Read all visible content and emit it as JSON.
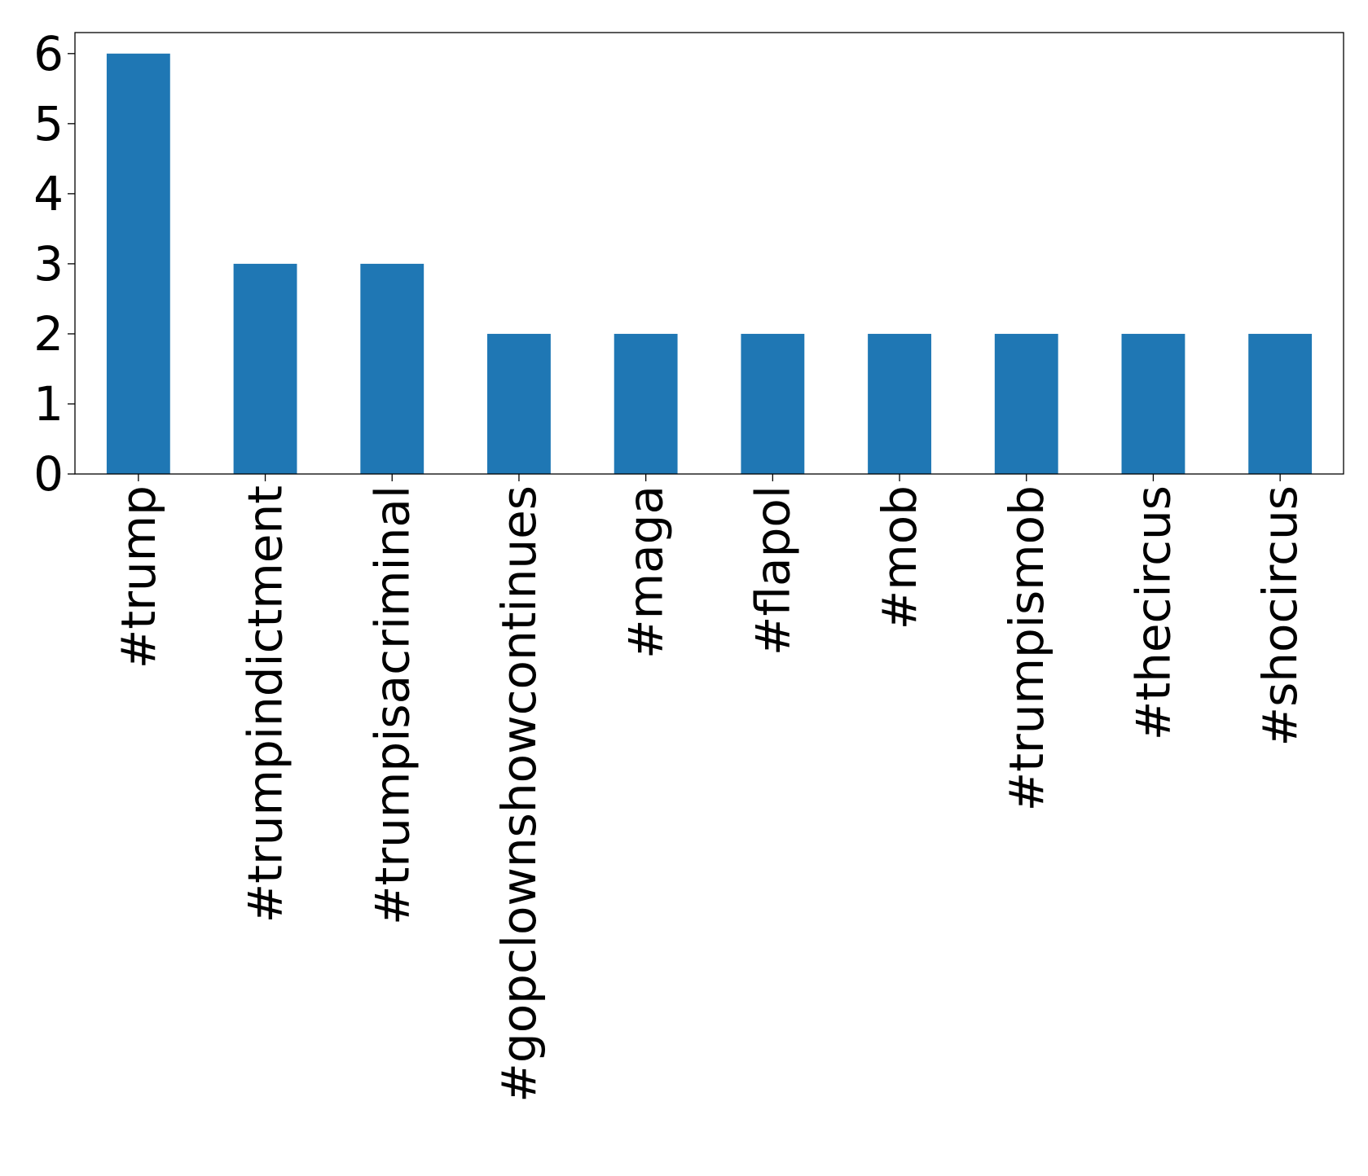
{
  "chart_data": {
    "type": "bar",
    "categories": [
      "#trump",
      "#trumpindictment",
      "#trumpisacriminal",
      "#gopclownshowcontinues",
      "#maga",
      "#flapol",
      "#mob",
      "#trumpismob",
      "#thecircus",
      "#shocircus"
    ],
    "values": [
      6,
      3,
      3,
      2,
      2,
      2,
      2,
      2,
      2,
      2
    ],
    "title": "",
    "xlabel": "",
    "ylabel": "",
    "ylim": [
      0,
      6.3
    ],
    "yticks": [
      0,
      1,
      2,
      3,
      4,
      5,
      6
    ],
    "grid": false,
    "legend": "none",
    "bar_color": "#1f77b4"
  }
}
